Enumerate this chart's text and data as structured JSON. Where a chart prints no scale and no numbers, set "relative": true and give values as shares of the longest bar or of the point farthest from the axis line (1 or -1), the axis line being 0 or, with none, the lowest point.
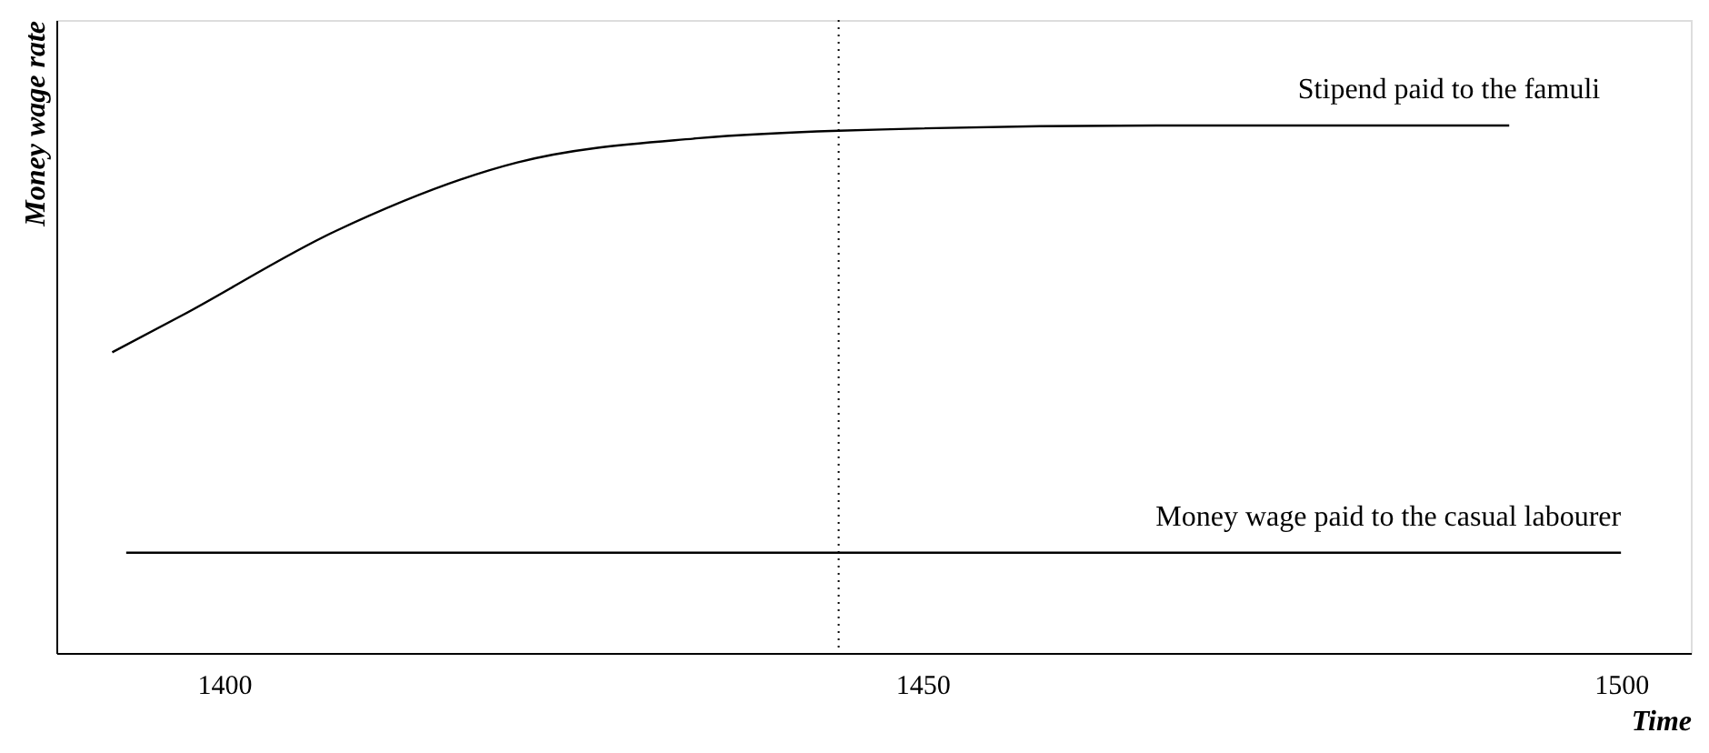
{
  "chart_data": {
    "type": "line",
    "relative": true,
    "xlabel": "Time",
    "ylabel": "Money wage rate",
    "xlim": [
      1388,
      1505
    ],
    "xticks": [
      1400,
      1450,
      1500
    ],
    "marker": "none",
    "line_style": "solid",
    "series": [
      {
        "name": "Stipend paid to the famuli",
        "color": "#000000",
        "x": [
          1392,
          1397,
          1408,
          1421,
          1434,
          1444,
          1467,
          1480,
          1492
        ],
        "values": [
          0.57,
          0.64,
          0.8,
          0.93,
          0.976,
          0.99,
          1,
          1,
          1
        ]
      },
      {
        "name": "Money wage paid to the casual labourer",
        "color": "#000000",
        "x": [
          1393,
          1500
        ],
        "values": [
          0.19,
          0.19
        ]
      }
    ],
    "ref_lines": [
      {
        "axis": "x",
        "value": 1444,
        "label": null,
        "line_style": "dotted",
        "color": "#000000"
      }
    ]
  }
}
